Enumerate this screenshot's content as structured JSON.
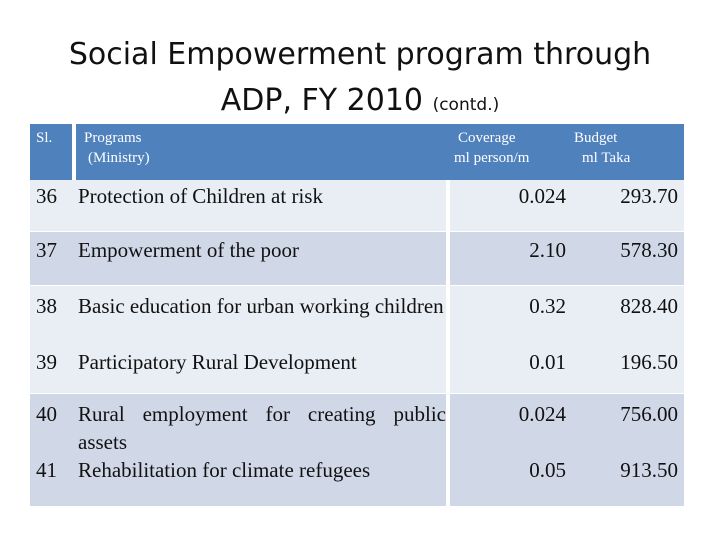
{
  "title": {
    "line1": "Social Empowerment program through",
    "line2": "ADP, FY 2010",
    "suffix": "(contd.)"
  },
  "table": {
    "header": {
      "sl": "Sl.",
      "programs_line1": "Programs",
      "programs_line2": "(Ministry)",
      "coverage_line1": "Coverage",
      "coverage_line2": "ml person/m",
      "budget_line1": "Budget",
      "budget_line2": "ml Taka"
    },
    "rows": [
      {
        "num": "36",
        "program": "Protection of Children at risk",
        "coverage": "0.024",
        "budget": "293.70"
      },
      {
        "num": "37",
        "program": "Empowerment of the poor",
        "coverage": "2.10",
        "budget": "578.30"
      },
      {
        "num": "38",
        "program": "Basic education for urban working children",
        "coverage": "0.32",
        "budget": "828.40"
      },
      {
        "num": "39",
        "program": "Participatory Rural Development",
        "coverage": "0.01",
        "budget": "196.50"
      },
      {
        "num": "40",
        "program": "Rural employment for creating public assets",
        "coverage": "0.024",
        "budget": "756.00"
      },
      {
        "num": "41",
        "program": "Rehabilitation for climate refugees",
        "coverage": "0.05",
        "budget": "913.50"
      }
    ]
  },
  "colors": {
    "header_bg": "#4f81bd",
    "row_light": "#e9edf4",
    "row_dark": "#d0d8e8"
  }
}
